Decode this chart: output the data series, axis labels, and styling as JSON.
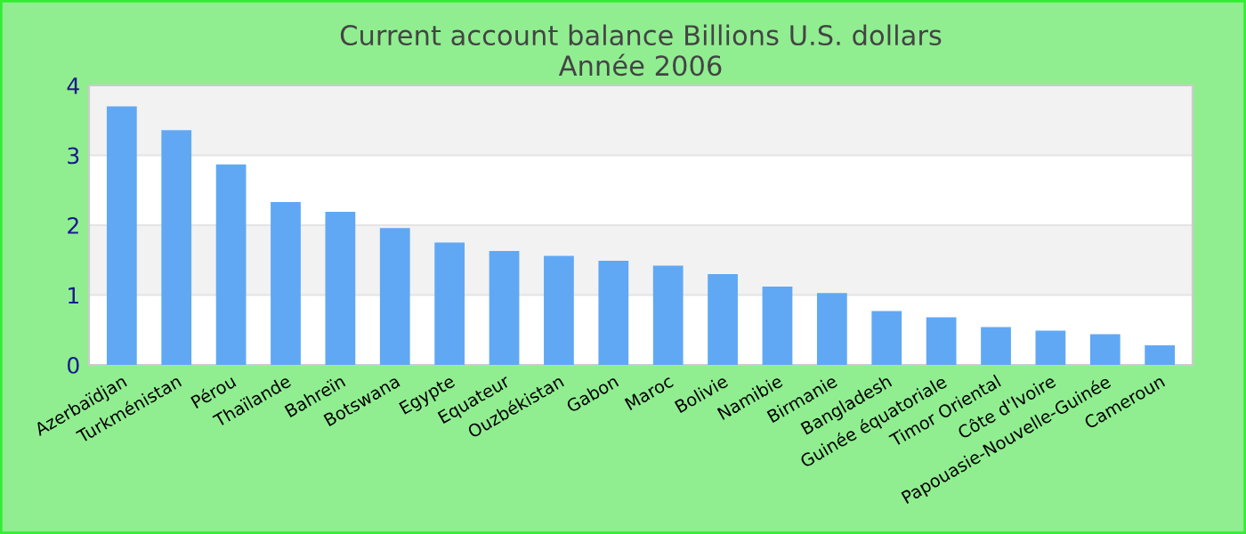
{
  "chart_data": {
    "type": "bar",
    "title": "Current account balance Billions U.S. dollars\nAnnée 2006",
    "categories": [
      "Azerbaïdjan",
      "Turkménistan",
      "Pérou",
      "Thaïlande",
      "Bahreïn",
      "Botswana",
      "Egypte",
      "Equateur",
      "Ouzbékistan",
      "Gabon",
      "Maroc",
      "Bolivie",
      "Namibie",
      "Birmanie",
      "Bangladesh",
      "Guinée équatoriale",
      "Timor Oriental",
      "Côte d'Ivoire",
      "Papouasie-Nouvelle-Guinée",
      "Cameroun"
    ],
    "values": [
      3.7,
      3.36,
      2.87,
      2.33,
      2.19,
      1.96,
      1.75,
      1.63,
      1.56,
      1.49,
      1.42,
      1.3,
      1.12,
      1.03,
      0.77,
      0.68,
      0.54,
      0.49,
      0.44,
      0.28
    ],
    "color": "#60a8f4",
    "ylim": [
      0,
      4
    ],
    "yticks": [
      0,
      1,
      2,
      3,
      4
    ],
    "grid": "y",
    "legend": false
  }
}
